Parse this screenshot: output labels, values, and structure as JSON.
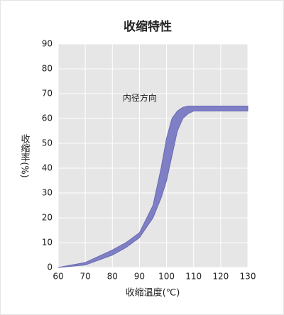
{
  "chart_data": {
    "type": "band",
    "title": "收缩特性",
    "xlabel": "收缩温度(℃)",
    "ylabel": "收缩率(%)",
    "x": [
      60,
      70,
      80,
      85,
      90,
      95,
      98,
      100,
      102,
      104,
      106,
      108,
      110,
      115,
      130
    ],
    "series": [
      {
        "name": "内径方向",
        "color": "#7f7fc6",
        "high": [
          0,
          2,
          7,
          10,
          14,
          25,
          40,
          52,
          60,
          63,
          64.5,
          65,
          65,
          65,
          65
        ],
        "low": [
          0,
          1,
          5,
          8,
          12,
          20,
          28,
          35,
          45,
          55,
          60,
          62,
          63,
          63,
          63
        ]
      }
    ],
    "xlim": [
      60,
      130
    ],
    "xticks": [
      60,
      70,
      80,
      90,
      100,
      110,
      120,
      130
    ],
    "ylim": [
      0,
      90
    ],
    "yticks": [
      0,
      10,
      20,
      30,
      40,
      50,
      60,
      70,
      80,
      90
    ],
    "grid": true
  }
}
